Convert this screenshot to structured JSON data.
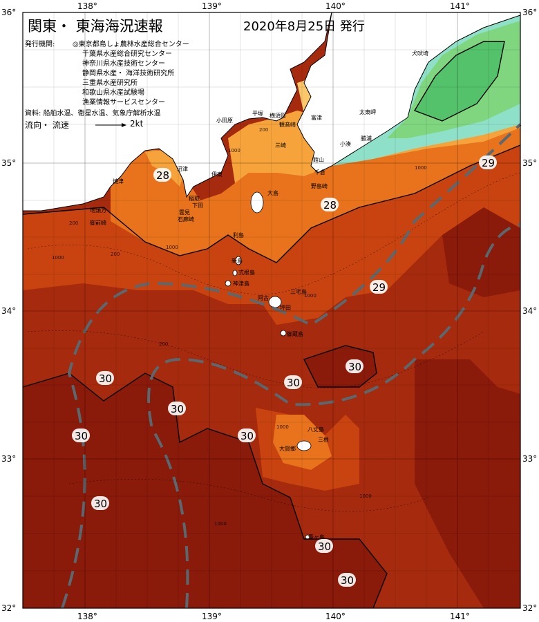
{
  "header": {
    "title": "関東・ 東海海況速報",
    "date": "2020年8月25日 発行"
  },
  "info": {
    "issuer_label": "発行機関:",
    "issuers": [
      "◎東京都島しょ農林水産総合センター",
      "千葉県水産総合研究センター",
      "神奈川県水産技術センター",
      "静岡県水産・ 海洋技術研究所",
      "三重県水産研究所",
      "和歌山県水産試験場",
      "漁業情報サービスセンター"
    ],
    "source": "資料: 船舶水温、衛星水温、気象庁解析水温",
    "flow_label": "流向・ 流速",
    "flow_scale": "2kt"
  },
  "axes": {
    "lon_ticks": [
      "138°",
      "139°",
      "140°",
      "141°"
    ],
    "lat_ticks": [
      "36°",
      "35°",
      "34°",
      "33°",
      "32°"
    ]
  },
  "temperature_labels": [
    "28",
    "28",
    "29",
    "29",
    "30",
    "30",
    "30",
    "30",
    "30",
    "30",
    "30",
    "30",
    "30"
  ],
  "place_names": [
    "犬吠埼",
    "太東岬",
    "勝浦",
    "小湊",
    "館山",
    "千倉",
    "野島崎",
    "富津",
    "観音崎",
    "横須賀",
    "平塚",
    "小田原",
    "三崎",
    "伊東",
    "稲取",
    "下田",
    "雲見",
    "石廊崎",
    "沼津",
    "焼津",
    "御前崎",
    "地頭方",
    "大島",
    "利島",
    "新島",
    "式根島",
    "神津島",
    "三宅島",
    "御蔵島",
    "阿古",
    "坪田",
    "八丈島",
    "三根",
    "大賀郷",
    "青ヶ島"
  ],
  "depth_labels": [
    "200",
    "1000",
    "200",
    "1000",
    "1000",
    "200",
    "1000",
    "1000",
    "200",
    "1000",
    "1000",
    "1000"
  ],
  "colors": {
    "land": "#ffffff",
    "sea_warmest": "#8a1a0a",
    "sea_30": "#a62a0d",
    "sea_29": "#c8430f",
    "sea_28": "#e8731c",
    "sea_27": "#f5a33a",
    "sea_26": "#fac76a",
    "coast_green": "#7fd67f",
    "coast_cyan": "#8fe0c8",
    "current_line": "#5a6870"
  }
}
